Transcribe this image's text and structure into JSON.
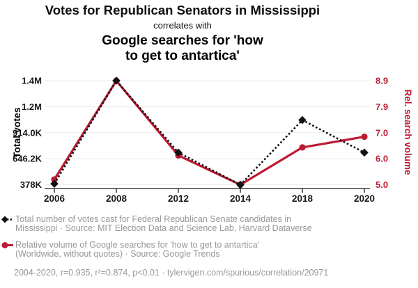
{
  "header": {
    "title": "Votes for Republican Senators in Mississippi",
    "subtitle": "correlates with",
    "red_title_lines": [
      "Google searches for 'how",
      "to get to antartica'"
    ]
  },
  "legend": {
    "rows": [
      {
        "series": "votes",
        "marker": "black-diamond-dashed-line",
        "lines": [
          "Total number of votes cast for Federal Republican Senate candidates in",
          "Mississippi · Source: MIT Election Data and Science Lab, Harvard Dataverse"
        ]
      },
      {
        "series": "search",
        "marker": "red-circle-solid-line",
        "lines": [
          "Relative volume of Google searches for 'how to get to antartica'",
          "(Worldwide, without quotes) · Source: Google Trends"
        ]
      }
    ]
  },
  "footer": {
    "text": "2004-2020, r=0.935, r²=0.874, p<0.01 · tylervigen.com/spurious/correlation/20971"
  },
  "colors": {
    "accent_red": "#bd1a33",
    "series_black": "#111111",
    "gridline": "#ececec",
    "axis": "#1a1a1a",
    "legend_gray": "#989898"
  },
  "chart_data": {
    "type": "line",
    "x": [
      2006,
      2008,
      2012,
      2014,
      2018,
      2020
    ],
    "x_ticks": [
      "2006",
      "2008",
      "2012",
      "2014",
      "2018",
      "2020"
    ],
    "series": [
      {
        "name": "Total votes",
        "axis": "left",
        "style": "dashed-diamond",
        "color": "#111111",
        "values": [
          388400,
          1450300,
          709600,
          378000,
          1045000,
          709500
        ]
      },
      {
        "name": "Rel. search volume",
        "axis": "right",
        "style": "solid-circle",
        "color": "#bd1a33",
        "values": [
          5.2,
          8.9,
          6.1,
          5.0,
          6.4,
          6.8
        ]
      }
    ],
    "left_axis": {
      "label": "Total votes",
      "ticks": [
        "378K",
        "646.2K",
        "914.0K",
        "1.2M",
        "1.4M"
      ],
      "range": [
        378000,
        1450300
      ]
    },
    "right_axis": {
      "label": "Rel. search volume",
      "ticks": [
        "5.0",
        "6.0",
        "7.0",
        "7.9",
        "8.9"
      ],
      "range": [
        5.0,
        8.9
      ]
    },
    "grid": true,
    "legend_position": "bottom"
  }
}
